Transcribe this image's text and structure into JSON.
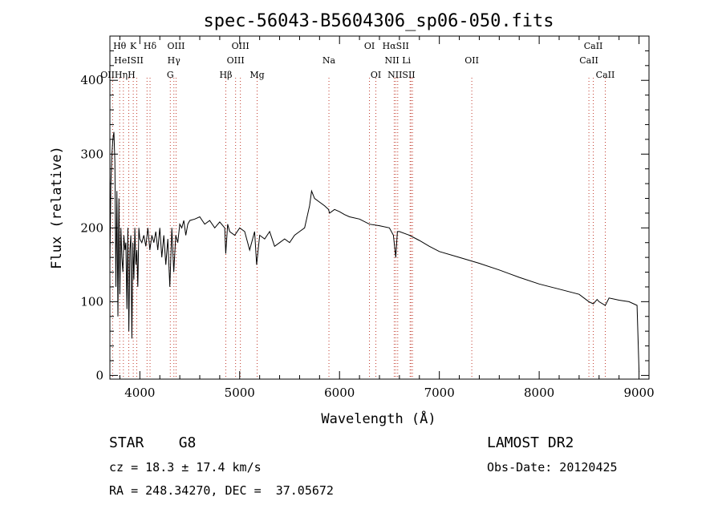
{
  "chart_data": {
    "type": "line",
    "title": "spec-56043-B5604306_sp06-050.fits",
    "xlabel": "Wavelength (Å)",
    "ylabel": "Flux (relative)",
    "xlim": [
      3700,
      9100
    ],
    "ylim": [
      -5,
      460
    ],
    "x_ticks": [
      4000,
      5000,
      6000,
      7000,
      8000,
      9000
    ],
    "y_ticks": [
      0,
      100,
      200,
      300,
      400
    ],
    "grid": false,
    "series": [
      {
        "x": [
          3700,
          3710,
          3720,
          3730,
          3740,
          3750,
          3760,
          3770,
          3780,
          3790,
          3800,
          3810,
          3820,
          3830,
          3840,
          3850,
          3860,
          3870,
          3880,
          3890,
          3900,
          3910,
          3920,
          3930,
          3940,
          3950,
          3960,
          3970,
          3980,
          3990,
          4000,
          4020,
          4040,
          4060,
          4080,
          4100,
          4120,
          4140,
          4160,
          4180,
          4200,
          4220,
          4240,
          4260,
          4280,
          4300,
          4320,
          4340,
          4360,
          4380,
          4400,
          4420,
          4440,
          4460,
          4480,
          4500,
          4550,
          4600,
          4650,
          4700,
          4750,
          4800,
          4850,
          4860,
          4880,
          4900,
          4950,
          5000,
          5050,
          5100,
          5150,
          5170,
          5200,
          5250,
          5300,
          5350,
          5400,
          5450,
          5500,
          5550,
          5600,
          5650,
          5700,
          5720,
          5750,
          5800,
          5850,
          5890,
          5900,
          5950,
          6000,
          6050,
          6100,
          6200,
          6300,
          6400,
          6500,
          6540,
          6563,
          6580,
          6600,
          6700,
          6800,
          6900,
          7000,
          7200,
          7400,
          7600,
          7800,
          8000,
          8200,
          8400,
          8498,
          8542,
          8580,
          8600,
          8662,
          8700,
          8800,
          8900,
          8980,
          9000
        ],
        "y": [
          150,
          260,
          300,
          320,
          330,
          290,
          120,
          250,
          80,
          240,
          110,
          200,
          160,
          140,
          190,
          170,
          180,
          90,
          200,
          60,
          170,
          190,
          50,
          180,
          130,
          200,
          150,
          170,
          120,
          200,
          185,
          180,
          190,
          175,
          200,
          170,
          190,
          180,
          195,
          170,
          200,
          160,
          190,
          150,
          185,
          120,
          200,
          140,
          190,
          180,
          205,
          200,
          210,
          190,
          205,
          210,
          212,
          215,
          205,
          210,
          200,
          208,
          200,
          165,
          205,
          195,
          190,
          200,
          195,
          170,
          195,
          150,
          190,
          185,
          195,
          175,
          180,
          185,
          180,
          190,
          195,
          200,
          230,
          250,
          240,
          235,
          230,
          225,
          220,
          225,
          222,
          218,
          215,
          212,
          205,
          203,
          200,
          190,
          160,
          195,
          195,
          190,
          183,
          175,
          168,
          160,
          152,
          143,
          133,
          124,
          117,
          110,
          100,
          97,
          103,
          100,
          95,
          105,
          102,
          100,
          95,
          5
        ]
      }
    ],
    "lines": [
      {
        "name": "OII",
        "x": 3727
      },
      {
        "name": "Hθ",
        "x": 3798
      },
      {
        "name": "Hη",
        "x": 3835
      },
      {
        "name": "HeI",
        "x": 3889
      },
      {
        "name": "K",
        "x": 3934
      },
      {
        "name": "H",
        "x": 3969
      },
      {
        "name": "SII",
        "x": 4072
      },
      {
        "name": "Hδ",
        "x": 4102
      },
      {
        "name": "G",
        "x": 4305
      },
      {
        "name": "Hγ",
        "x": 4341
      },
      {
        "name": "OIII",
        "x": 4363
      },
      {
        "name": "Hβ",
        "x": 4861
      },
      {
        "name": "OIII",
        "x": 4959
      },
      {
        "name": "OIII",
        "x": 5007
      },
      {
        "name": "Mg",
        "x": 5175
      },
      {
        "name": "Na",
        "x": 5894
      },
      {
        "name": "OI",
        "x": 6300
      },
      {
        "name": "OI",
        "x": 6364
      },
      {
        "name": "NII",
        "x": 6548
      },
      {
        "name": "Hα",
        "x": 6563
      },
      {
        "name": "NII",
        "x": 6583
      },
      {
        "name": "Li",
        "x": 6707
      },
      {
        "name": "SII",
        "x": 6716
      },
      {
        "name": "SII",
        "x": 6731
      },
      {
        "name": "OII",
        "x": 7325
      },
      {
        "name": "CaII",
        "x": 8498
      },
      {
        "name": "CaII",
        "x": 8542
      },
      {
        "name": "CaII",
        "x": 8662
      }
    ],
    "line_labels": [
      {
        "text": "Hθ",
        "x": 3798,
        "row": 0
      },
      {
        "text": "K",
        "x": 3934,
        "row": 0
      },
      {
        "text": "Hδ",
        "x": 4102,
        "row": 0
      },
      {
        "text": "OIII",
        "x": 4363,
        "row": 0
      },
      {
        "text": "OIII",
        "x": 5007,
        "row": 0
      },
      {
        "text": "OI",
        "x": 6300,
        "row": 0
      },
      {
        "text": "HαSII",
        "x": 6563,
        "row": 0
      },
      {
        "text": "CaII",
        "x": 8542,
        "row": 0
      },
      {
        "text": "HeISII",
        "x": 3889,
        "row": 1
      },
      {
        "text": "Hγ",
        "x": 4341,
        "row": 1
      },
      {
        "text": "OIII",
        "x": 4959,
        "row": 1
      },
      {
        "text": "Na",
        "x": 5894,
        "row": 1
      },
      {
        "text": "NII Li",
        "x": 6583,
        "row": 1
      },
      {
        "text": "OII",
        "x": 7325,
        "row": 1
      },
      {
        "text": "CaII",
        "x": 8498,
        "row": 1
      },
      {
        "text": "OIIHηH",
        "x": 3780,
        "row": 2
      },
      {
        "text": "G",
        "x": 4305,
        "row": 2
      },
      {
        "text": "Hβ",
        "x": 4861,
        "row": 2
      },
      {
        "text": "Mg",
        "x": 5175,
        "row": 2
      },
      {
        "text": "OI",
        "x": 6364,
        "row": 2
      },
      {
        "text": "NIISII",
        "x": 6620,
        "row": 2
      },
      {
        "text": "CaII",
        "x": 8662,
        "row": 2
      }
    ]
  },
  "info": {
    "object": "STAR    G8",
    "cz": "cz = 18.3 ± 17.4 km/s",
    "radec": "RA = 248.34270, DEC =  37.05672",
    "survey": "LAMOST DR2",
    "obsdate": "Obs-Date: 20120425"
  }
}
